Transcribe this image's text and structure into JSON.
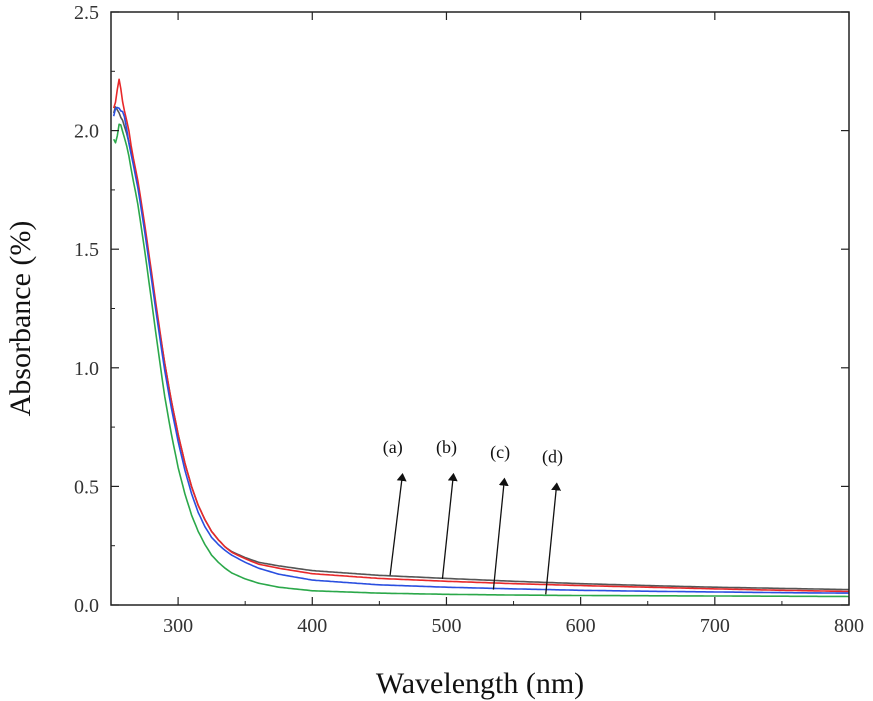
{
  "chart_data": {
    "type": "line",
    "title": "",
    "xlabel": "Wavelength (nm)",
    "ylabel": "Absorbance (%)",
    "xlim": [
      250,
      800
    ],
    "ylim": [
      0,
      2.5
    ],
    "xticks": [
      300,
      400,
      500,
      600,
      700,
      800
    ],
    "xtick_labels": [
      "300",
      "400",
      "500",
      "600",
      "700",
      "800"
    ],
    "yticks": [
      0,
      0.5,
      1,
      1.5,
      2,
      2.5
    ],
    "ytick_labels": [
      "0.0",
      "0.5",
      "1.0",
      "1.5",
      "2.0",
      "2.5"
    ],
    "grid": false,
    "legend": "none",
    "series": [
      {
        "color": "#555555",
        "x": [
          252,
          256,
          260,
          265,
          270,
          275,
          280,
          285,
          290,
          295,
          300,
          305,
          310,
          315,
          320,
          325,
          330,
          335,
          340,
          350,
          360,
          375,
          400,
          450,
          500,
          550,
          600,
          650,
          700,
          750,
          800
        ],
        "y": [
          2.05,
          2.08,
          2.02,
          1.92,
          1.78,
          1.6,
          1.4,
          1.2,
          1.02,
          0.86,
          0.72,
          0.6,
          0.5,
          0.42,
          0.36,
          0.31,
          0.275,
          0.245,
          0.225,
          0.2,
          0.18,
          0.165,
          0.145,
          0.125,
          0.112,
          0.1,
          0.09,
          0.082,
          0.075,
          0.07,
          0.065
        ]
      },
      {
        "color": "#e8282a",
        "x": [
          252,
          256,
          260,
          265,
          270,
          275,
          280,
          285,
          290,
          295,
          300,
          305,
          310,
          315,
          320,
          325,
          330,
          335,
          340,
          350,
          360,
          375,
          400,
          450,
          500,
          550,
          600,
          650,
          700,
          750,
          800
        ],
        "y": [
          2.12,
          2.18,
          2.1,
          1.93,
          1.79,
          1.61,
          1.41,
          1.21,
          1.02,
          0.86,
          0.72,
          0.6,
          0.5,
          0.42,
          0.36,
          0.31,
          0.275,
          0.245,
          0.222,
          0.195,
          0.172,
          0.155,
          0.132,
          0.112,
          0.1,
          0.09,
          0.082,
          0.075,
          0.068,
          0.062,
          0.057
        ]
      },
      {
        "color": "#2a4fe0",
        "x": [
          252,
          256,
          260,
          265,
          270,
          275,
          280,
          285,
          290,
          295,
          300,
          305,
          310,
          315,
          320,
          325,
          330,
          335,
          340,
          350,
          360,
          375,
          400,
          450,
          500,
          550,
          600,
          650,
          700,
          750,
          800
        ],
        "y": [
          2.08,
          2.1,
          2.04,
          1.9,
          1.76,
          1.58,
          1.38,
          1.18,
          0.99,
          0.83,
          0.69,
          0.57,
          0.47,
          0.39,
          0.33,
          0.285,
          0.255,
          0.23,
          0.21,
          0.18,
          0.155,
          0.13,
          0.105,
          0.085,
          0.075,
          0.068,
          0.062,
          0.058,
          0.055,
          0.052,
          0.05
        ]
      },
      {
        "color": "#2ba84a",
        "x": [
          252,
          256,
          260,
          265,
          270,
          275,
          280,
          285,
          290,
          295,
          300,
          305,
          310,
          315,
          320,
          325,
          330,
          335,
          340,
          350,
          360,
          375,
          400,
          450,
          500,
          550,
          600,
          650,
          700,
          750,
          800
        ],
        "y": [
          1.98,
          2.02,
          1.97,
          1.84,
          1.69,
          1.5,
          1.29,
          1.08,
          0.88,
          0.72,
          0.58,
          0.47,
          0.38,
          0.31,
          0.255,
          0.21,
          0.18,
          0.155,
          0.135,
          0.11,
          0.092,
          0.075,
          0.06,
          0.05,
          0.045,
          0.042,
          0.04,
          0.039,
          0.038,
          0.037,
          0.036
        ]
      }
    ],
    "annotations": [
      {
        "label": "(a)",
        "text_x": 460,
        "text_y": 0.64,
        "tip_x": 467,
        "tip_y": 0.54,
        "tail_x": 458,
        "tail_y": 0.125
      },
      {
        "label": "(b)",
        "text_x": 500,
        "text_y": 0.64,
        "tip_x": 505,
        "tip_y": 0.54,
        "tail_x": 497,
        "tail_y": 0.11
      },
      {
        "label": "(c)",
        "text_x": 540,
        "text_y": 0.62,
        "tip_x": 543,
        "tip_y": 0.52,
        "tail_x": 535,
        "tail_y": 0.065
      },
      {
        "label": "(d)",
        "text_x": 579,
        "text_y": 0.6,
        "tip_x": 582,
        "tip_y": 0.5,
        "tail_x": 574,
        "tail_y": 0.045
      }
    ]
  }
}
